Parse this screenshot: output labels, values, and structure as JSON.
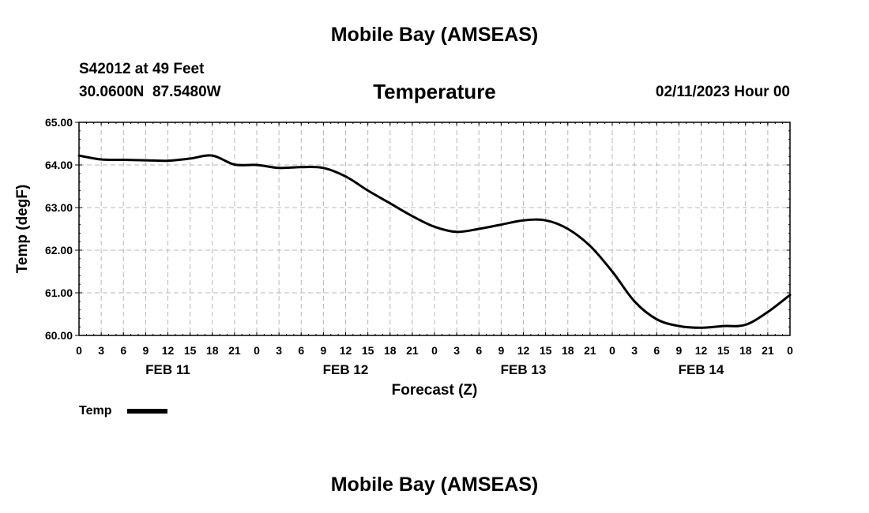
{
  "page": {
    "title": "Mobile Bay (AMSEAS)",
    "title_repeat": "Mobile Bay (AMSEAS)",
    "station_line": "S42012 at 49 Feet",
    "coords_line": "30.0600N  87.5480W",
    "chart_title": "Temperature",
    "date_line": "02/11/2023 Hour 00"
  },
  "chart_data": {
    "type": "line",
    "title": "Temperature",
    "xlabel": "Forecast (Z)",
    "ylabel": "Temp (degF)",
    "xlim": [
      0,
      96
    ],
    "ylim": [
      60,
      65
    ],
    "grid": true,
    "y_ticks": [
      "60.00",
      "61.00",
      "62.00",
      "63.00",
      "64.00",
      "65.00"
    ],
    "x_tick_labels": [
      "0",
      "3",
      "6",
      "9",
      "12",
      "15",
      "18",
      "21",
      "0",
      "3",
      "6",
      "9",
      "12",
      "15",
      "18",
      "21",
      "0",
      "3",
      "6",
      "9",
      "12",
      "15",
      "18",
      "21",
      "0",
      "3",
      "6",
      "9",
      "12",
      "15",
      "18",
      "21",
      "0"
    ],
    "day_labels": [
      {
        "label": "FEB 11",
        "hour": 12
      },
      {
        "label": "FEB 12",
        "hour": 36
      },
      {
        "label": "FEB 13",
        "hour": 60
      },
      {
        "label": "FEB 14",
        "hour": 84
      }
    ],
    "legend": {
      "label": "Temp",
      "placement": "bottom-left"
    },
    "series": [
      {
        "name": "Temp",
        "color": "#000000",
        "x": [
          0,
          3,
          6,
          9,
          12,
          15,
          18,
          21,
          24,
          27,
          30,
          33,
          36,
          39,
          42,
          45,
          48,
          51,
          54,
          57,
          60,
          63,
          66,
          69,
          72,
          75,
          78,
          81,
          84,
          87,
          90,
          93,
          96
        ],
        "values": [
          64.22,
          64.13,
          64.12,
          64.11,
          64.1,
          64.15,
          64.22,
          64.01,
          64.0,
          63.93,
          63.95,
          63.93,
          63.73,
          63.4,
          63.1,
          62.8,
          62.55,
          62.43,
          62.5,
          62.6,
          62.7,
          62.7,
          62.5,
          62.1,
          61.5,
          60.8,
          60.38,
          60.22,
          60.18,
          60.22,
          60.25,
          60.55,
          60.95
        ]
      }
    ]
  }
}
